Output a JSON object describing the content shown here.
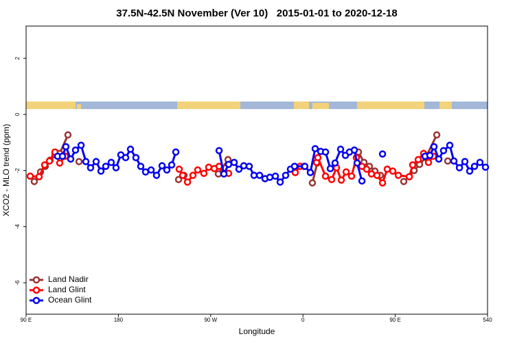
{
  "chart_data": {
    "type": "line",
    "title": "37.5N-42.5N November (Ver 10)   2015-01-01 to 2020-12-18",
    "xlabel": "Longitude",
    "ylabel": "XCO2 - MLO trend (ppm)",
    "xlim": [
      90,
      540
    ],
    "ylim": [
      -7.12,
      3.15
    ],
    "xticks": [
      {
        "value": 90,
        "label": "90 E"
      },
      180,
      {
        "value": 270,
        "label": "90 W"
      },
      {
        "value": 360,
        "label": "0"
      },
      {
        "value": 450,
        "label": "90 E"
      },
      540
    ],
    "yticks": [
      2,
      0,
      -2,
      -4,
      -6
    ],
    "legend": "bottom-left",
    "series": [
      {
        "name": "Land Nadir",
        "color": "#993333",
        "x": [
          98.0,
          104.1,
          108.7,
          113.4,
          118.1,
          122.8,
          130.8,
          null,
          141.6,
          null,
          238.7,
          244.0,
          null,
          277.5,
          286.9,
          null,
          369.2,
          373.9,
          null,
          414.1,
          419.5,
          424.8,
          430.2,
          435.5,
          null,
          458.3,
          463.7,
          468.4,
          473.7,
          479.7,
          490.5,
          null,
          501.2
        ],
        "values": [
          -2.39,
          -2.05,
          -1.85,
          -1.63,
          -1.44,
          -1.39,
          -0.73,
          null,
          -1.68,
          null,
          -2.32,
          -2.17,
          null,
          -2.12,
          -1.61,
          null,
          -2.44,
          -1.73,
          null,
          -1.34,
          -1.71,
          -1.85,
          -2.02,
          -2.17,
          null,
          -2.39,
          -2.22,
          -2.0,
          -1.78,
          -1.54,
          -0.73,
          null,
          -1.66
        ]
      },
      {
        "name": "Land Glint",
        "color": "#ff0000",
        "x": [
          94.0,
          102.7,
          108.1,
          112.8,
          118.1,
          122.8,
          128.2,
          null,
          239.3,
          242.7,
          247.4,
          252.7,
          257.4,
          263.4,
          268.1,
          273.5,
          278.2,
          282.9,
          287.5,
          null,
          352.5,
          357.2,
          361.2,
          null,
          373.3,
          374.6,
          382.0,
          388.0,
          392.7,
          397.4,
          402.1,
          407.4,
          412.1,
          417.5,
          422.1,
          426.8,
          432.2,
          437.6,
          442.2,
          447.6,
          453.0,
          463.7,
          467.0,
          472.4,
          477.7,
          482.4,
          487.1
        ],
        "values": [
          -2.2,
          -2.22,
          -1.8,
          -1.66,
          -1.34,
          -1.73,
          -1.49,
          null,
          -1.95,
          -2.17,
          -2.41,
          -2.17,
          -1.98,
          -2.1,
          -1.88,
          -1.93,
          -1.85,
          -2.1,
          -2.1,
          null,
          -2.07,
          -1.85,
          -1.85,
          null,
          -1.71,
          -1.54,
          -2.2,
          -2.32,
          -1.9,
          -2.34,
          -2.05,
          -2.2,
          -1.54,
          -1.85,
          -1.95,
          -2.12,
          -2.17,
          -2.44,
          -1.95,
          -2.02,
          -2.17,
          -2.22,
          -1.8,
          -1.61,
          -1.39,
          -1.71,
          -1.49
        ]
      },
      {
        "name": "Ocean Glint",
        "color": "#0000ee",
        "x": [
          120.8,
          125.5,
          128.8,
          133.5,
          138.2,
          143.6,
          148.3,
          152.9,
          158.3,
          163.0,
          167.7,
          173.0,
          177.7,
          182.4,
          187.1,
          191.8,
          197.1,
          201.8,
          206.5,
          211.9,
          217.2,
          222.6,
          227.3,
          232.0,
          236.0,
          null,
          278.2,
          282.9,
          287.5,
          292.9,
          297.6,
          302.3,
          307.6,
          312.3,
          317.7,
          323.0,
          327.7,
          333.1,
          337.8,
          343.1,
          347.8,
          351.8,
          361.8,
          367.2,
          371.9,
          377.3,
          382.0,
          386.7,
          391.3,
          396.7,
          401.4,
          405.4,
          410.1,
          412.8,
          417.5,
          null,
          437.6,
          null,
          479.1,
          483.8,
          487.8,
          492.5,
          497.1,
          503.2,
          507.2,
          512.6,
          517.9,
          522.6,
          527.3,
          532.6,
          538.0
        ],
        "values": [
          -1.49,
          -1.49,
          -1.15,
          -1.59,
          -1.27,
          -1.1,
          -1.68,
          -1.9,
          -1.68,
          -2.02,
          -1.85,
          -1.71,
          -1.9,
          -1.44,
          -1.54,
          -1.24,
          -1.54,
          -1.85,
          -2.05,
          -1.98,
          -2.17,
          -1.83,
          -1.98,
          -1.8,
          -1.34,
          null,
          -1.29,
          -2.12,
          -1.78,
          -1.71,
          -1.95,
          -1.83,
          -1.85,
          -2.17,
          -2.17,
          -2.29,
          -2.24,
          -2.2,
          -2.41,
          -2.17,
          -1.95,
          -1.85,
          -1.85,
          -2.07,
          -1.22,
          -1.32,
          -1.34,
          -1.93,
          -1.73,
          -1.24,
          -1.46,
          -1.34,
          -1.27,
          -1.73,
          -2.37,
          null,
          -1.41,
          null,
          -1.49,
          -1.46,
          -1.15,
          -1.59,
          -1.29,
          -1.1,
          -1.66,
          -1.9,
          -1.68,
          -2.02,
          -1.85,
          -1.71,
          -1.88
        ]
      }
    ]
  }
}
